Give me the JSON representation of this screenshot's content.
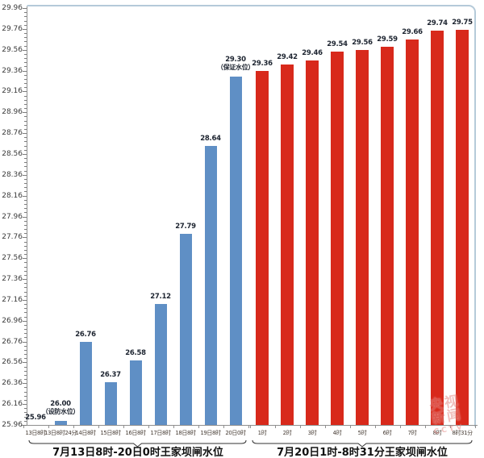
{
  "watermark": {
    "text_cn_line1": "央视",
    "text_cn_line2": "新闻",
    "text_en": "CCTV"
  },
  "chart_data": {
    "type": "bar",
    "title": "",
    "xlabel": "",
    "ylabel": "",
    "ylim": [
      25.96,
      29.96
    ],
    "y_tick_step": 0.2,
    "y_minor_step": 0.04,
    "grid": false,
    "legend_position": "none",
    "y_ticks": [
      "29.96",
      "29.76",
      "29.56",
      "29.36",
      "29.16",
      "28.96",
      "28.76",
      "28.56",
      "28.36",
      "28.16",
      "27.96",
      "27.76",
      "27.56",
      "27.36",
      "27.16",
      "26.96",
      "26.76",
      "26.56",
      "26.36",
      "26.16",
      "25.96"
    ],
    "groups": [
      {
        "name": "7月13日8时-20日0时王家坝闸水位",
        "color": "#5f8fc5",
        "categories": [
          "13日8时",
          "13日8时24分",
          "14日8时",
          "15日8时",
          "16日8时",
          "17日8时",
          "18日8时",
          "19日8时",
          "20日0时"
        ],
        "values": [
          25.96,
          26.0,
          26.76,
          26.37,
          26.58,
          27.12,
          27.79,
          28.64,
          29.3
        ],
        "annotations": {
          "1": "（设防水位）",
          "8": "（保证水位）"
        }
      },
      {
        "name": "7月20日1时-8时31分王家坝闸水位",
        "color": "#d8291b",
        "categories": [
          "1时",
          "2时",
          "3时",
          "4时",
          "5时",
          "6时",
          "7时",
          "8时",
          "8时31分"
        ],
        "values": [
          29.36,
          29.42,
          29.46,
          29.54,
          29.56,
          29.59,
          29.66,
          29.74,
          29.75
        ],
        "annotations": {}
      }
    ]
  }
}
